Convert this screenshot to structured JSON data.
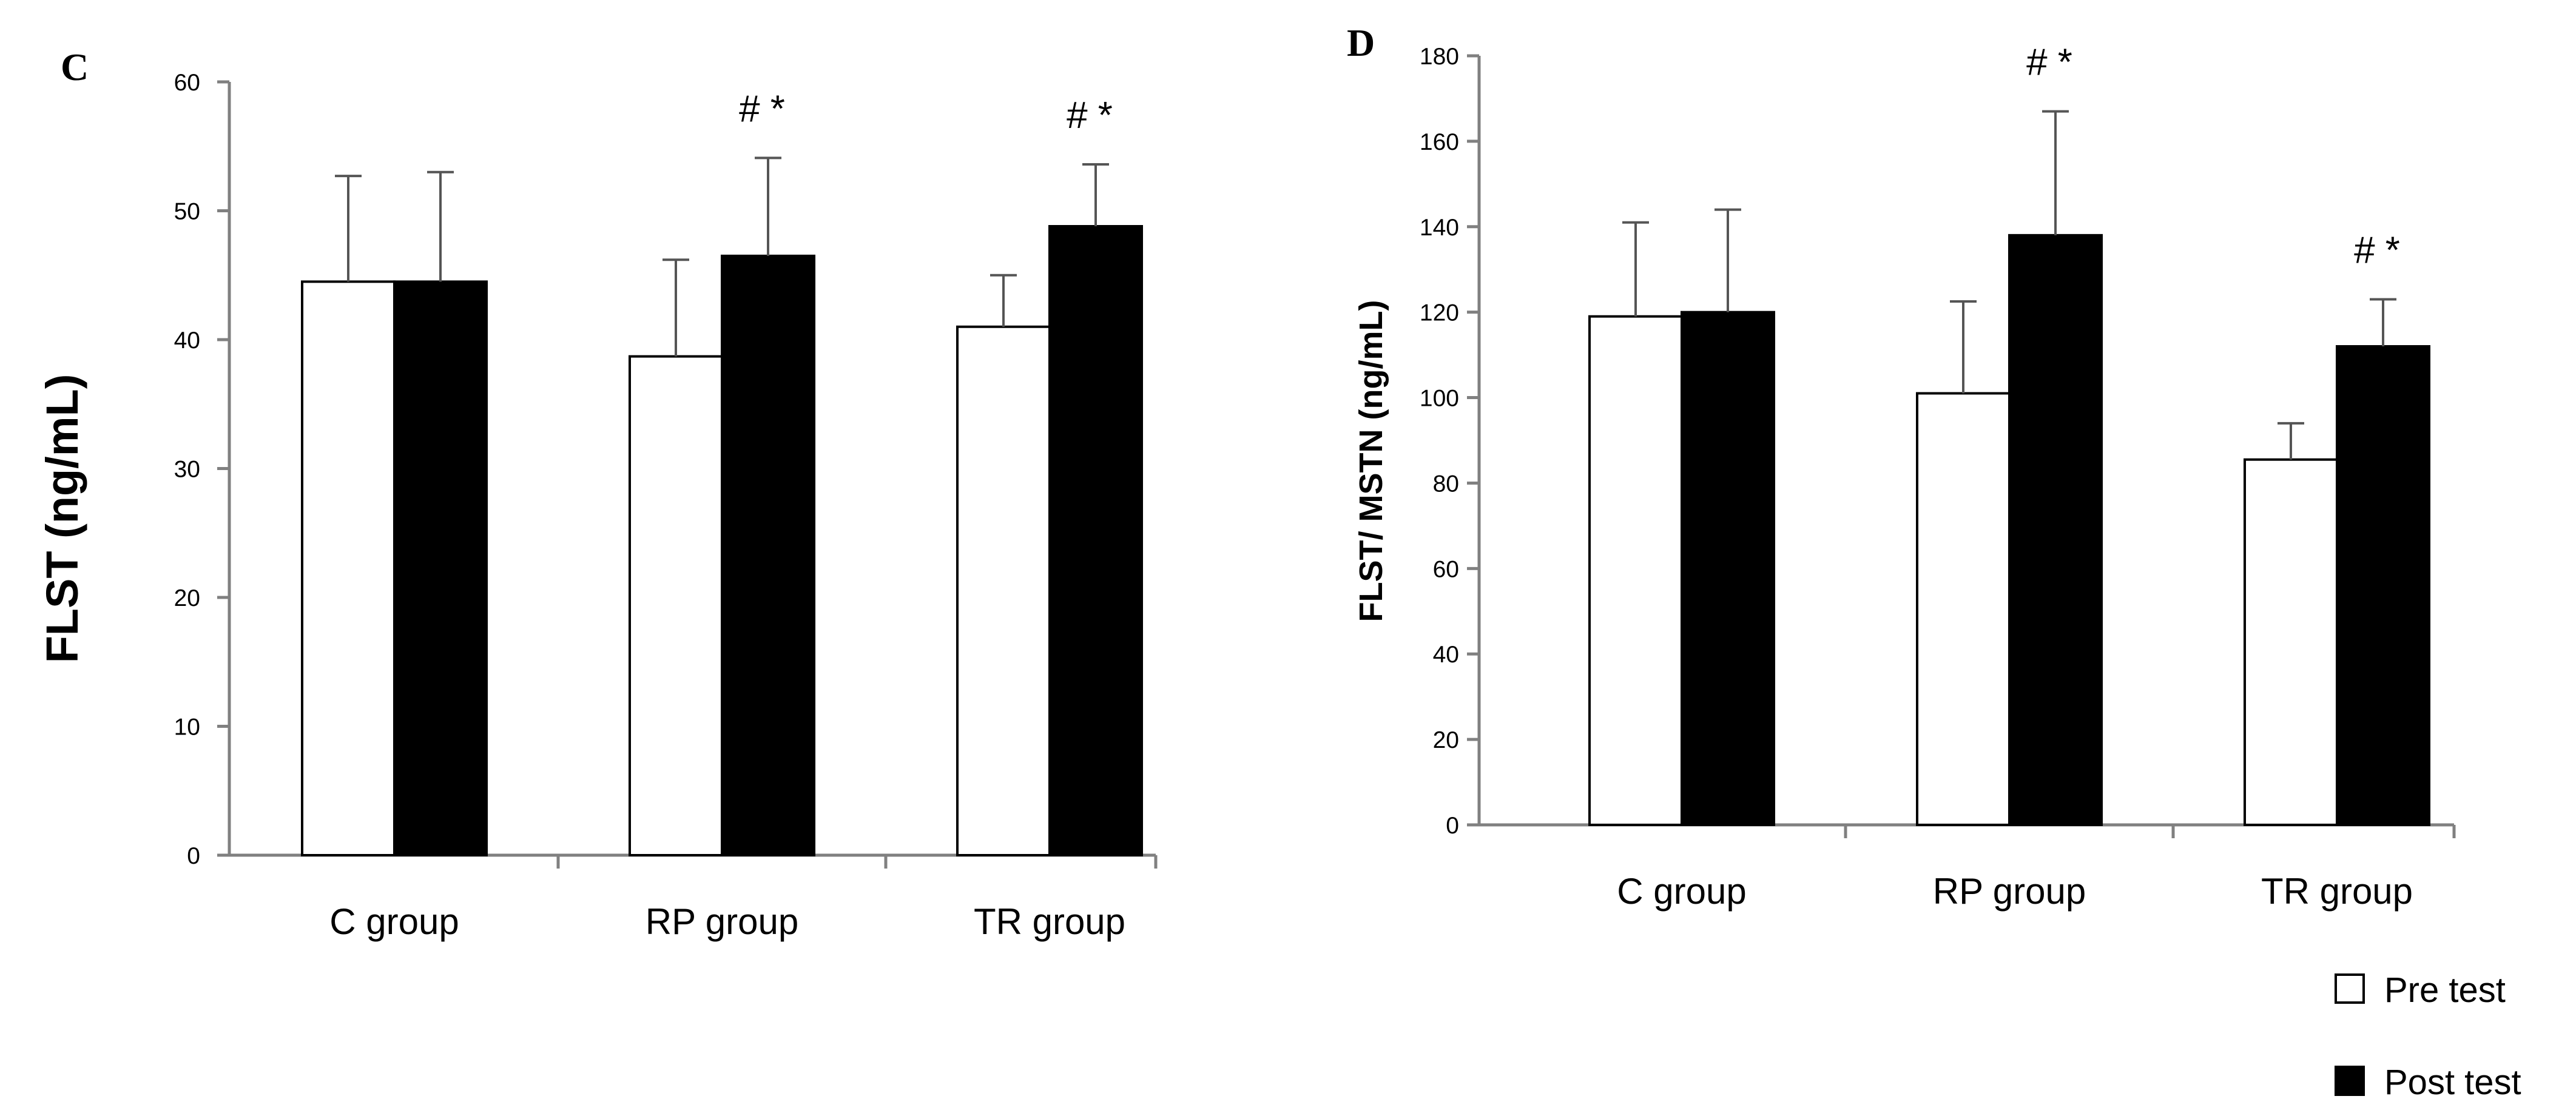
{
  "chart_data": [
    {
      "panel": "C",
      "type": "bar",
      "ylabel": "FLST (ng/mL)",
      "ylim": [
        0,
        60
      ],
      "yticks": [
        0,
        10,
        20,
        30,
        40,
        50,
        60
      ],
      "categories": [
        "C  group",
        "RP group",
        "TR group"
      ],
      "series": [
        {
          "name": "Pre test",
          "color": "#ffffff",
          "values": [
            44.5,
            38.7,
            41.0
          ],
          "errors": [
            8.2,
            7.5,
            4.0
          ]
        },
        {
          "name": "Post test",
          "color": "#000000",
          "values": [
            44.5,
            46.5,
            48.8
          ],
          "errors": [
            8.5,
            7.6,
            4.8
          ]
        }
      ],
      "annotations": [
        "",
        "# *",
        "# *"
      ]
    },
    {
      "panel": "D",
      "type": "bar",
      "ylabel": "FLST/ MSTN  (ng/mL)",
      "ylim": [
        0,
        180
      ],
      "yticks": [
        0,
        20,
        40,
        60,
        80,
        100,
        120,
        140,
        160,
        180
      ],
      "categories": [
        "C  group",
        "RP group",
        "TR group"
      ],
      "series": [
        {
          "name": "Pre test",
          "color": "#ffffff",
          "values": [
            119,
            101,
            85.5
          ],
          "errors": [
            22,
            21.5,
            8.5
          ]
        },
        {
          "name": "Post test",
          "color": "#000000",
          "values": [
            120,
            138,
            112
          ],
          "errors": [
            24,
            29,
            11
          ]
        }
      ],
      "annotations": [
        "",
        "# *",
        "# *"
      ]
    }
  ],
  "legend": [
    {
      "label": "Pre test",
      "fill": "#ffffff"
    },
    {
      "label": "Post test",
      "fill": "#000000"
    }
  ]
}
